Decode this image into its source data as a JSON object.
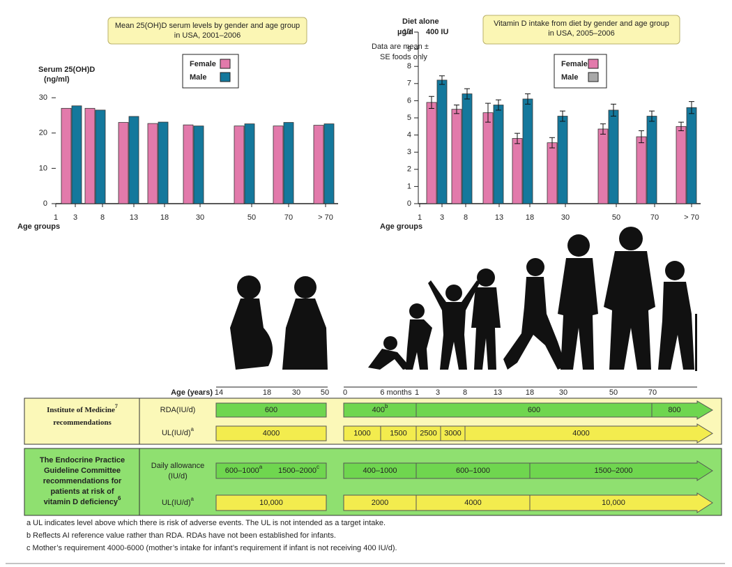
{
  "chart_data": [
    {
      "type": "bar",
      "title": [
        "Mean 25(OH)D serum levels by gender and age group",
        "in USA, 2001–2006"
      ],
      "y_label": [
        "Serum 25(OH)D",
        "(ng/ml)"
      ],
      "x_label": "Age groups",
      "categories": [
        null,
        null,
        null,
        null,
        null,
        null,
        null,
        null
      ],
      "xtick_labels": [
        "1",
        "3",
        "8",
        "13",
        "18",
        "30",
        "50",
        "70",
        "> 70"
      ],
      "series": [
        {
          "name": "Female",
          "color": "#e27aab",
          "values": [
            27,
            27,
            23,
            22.7,
            22.3,
            22,
            22,
            22.2
          ]
        },
        {
          "name": "Male",
          "color": "#14789c",
          "values": [
            27.7,
            26.5,
            24.7,
            23.1,
            22,
            22.6,
            23,
            22.6
          ]
        }
      ],
      "ylim": [
        0,
        32
      ],
      "yticks": [
        0,
        10,
        20,
        30
      ]
    },
    {
      "type": "bar",
      "title": [
        "Vitamin D intake from diet by gender and age group",
        "in USA, 2005–2006"
      ],
      "annotations": [
        "Diet alone",
        "µg/d",
        "400 IU",
        "Data are mean ±",
        "SE foods only"
      ],
      "x_label": "Age groups",
      "categories": [
        null,
        null,
        null,
        null,
        null,
        null,
        null,
        null
      ],
      "xtick_labels": [
        "1",
        "3",
        "8",
        "13",
        "18",
        "30",
        "50",
        "70",
        "> 70"
      ],
      "series": [
        {
          "name": "Female",
          "color": "#e27aab",
          "legend_color": "#e27aab",
          "values": [
            5.9,
            5.5,
            5.3,
            3.8,
            3.55,
            4.35,
            3.9,
            4.5
          ],
          "errors": [
            0.35,
            0.25,
            0.55,
            0.3,
            0.3,
            0.3,
            0.35,
            0.25
          ]
        },
        {
          "name": "Male",
          "color": "#14789c",
          "legend_color": "#a8a8a8",
          "values": [
            7.2,
            6.4,
            5.75,
            6.1,
            5.1,
            5.45,
            5.1,
            5.6
          ],
          "errors": [
            0.25,
            0.3,
            0.3,
            0.3,
            0.3,
            0.35,
            0.3,
            0.35
          ]
        }
      ],
      "ylim": [
        0,
        10
      ],
      "yticks": [
        0,
        1,
        2,
        3,
        4,
        5,
        6,
        7,
        8,
        9,
        10
      ]
    }
  ],
  "recommendations": {
    "age_label": "Age (years)",
    "ages_left": [
      "14",
      "18",
      "30",
      "50"
    ],
    "ages_right": [
      "0",
      "6 months",
      "1",
      "3",
      "8",
      "13",
      "18",
      "30",
      "50",
      "70"
    ],
    "sections": [
      {
        "title": [
          "Institute of Medicine",
          "recommendations"
        ],
        "title_sup": "7",
        "rows": [
          {
            "label": [
              "RDA(IU/d)"
            ],
            "left": [
              {
                "text": "600"
              }
            ],
            "right": [
              {
                "text": "400",
                "sup": "b"
              },
              {
                "text": "600"
              },
              {
                "text": "800"
              }
            ]
          },
          {
            "label": [
              "UL(IU/d)"
            ],
            "label_sup": "a",
            "left": [
              {
                "text": "4000"
              }
            ],
            "right": [
              {
                "text": "1000"
              },
              {
                "text": "1500"
              },
              {
                "text": "2500"
              },
              {
                "text": "3000"
              },
              {
                "text": "4000"
              }
            ]
          }
        ]
      },
      {
        "title": [
          "The Endocrine Practice",
          "Guideline Committee",
          "recommendations for",
          "patients at risk of",
          "vitamin D deficiency"
        ],
        "title_sup": "6",
        "rows": [
          {
            "label": [
              "Daily allowance",
              "(IU/d)"
            ],
            "left": [
              {
                "text": "600–1000",
                "sup": "a"
              },
              {
                "text": "1500–2000",
                "sup": "c"
              }
            ],
            "right": [
              {
                "text": "400–1000"
              },
              {
                "text": "600–1000"
              },
              {
                "text": "1500–2000"
              }
            ]
          },
          {
            "label": [
              "UL(IU/d)"
            ],
            "label_sup": "a",
            "left": [
              {
                "text": "10,000"
              }
            ],
            "right": [
              {
                "text": "2000"
              },
              {
                "text": "4000"
              },
              {
                "text": "10,000"
              }
            ]
          }
        ]
      }
    ],
    "footnotes": [
      "a UL indicates level above which there is risk of adverse events. The UL is not intended as a target intake.",
      "b Reflects AI reference value rather than RDA. RDAs have not been established for infants.",
      "c Mother’s requirement 4000-6000 (mother’s intake for infant’s requirement if infant is not receiving 400 IU/d)."
    ]
  }
}
